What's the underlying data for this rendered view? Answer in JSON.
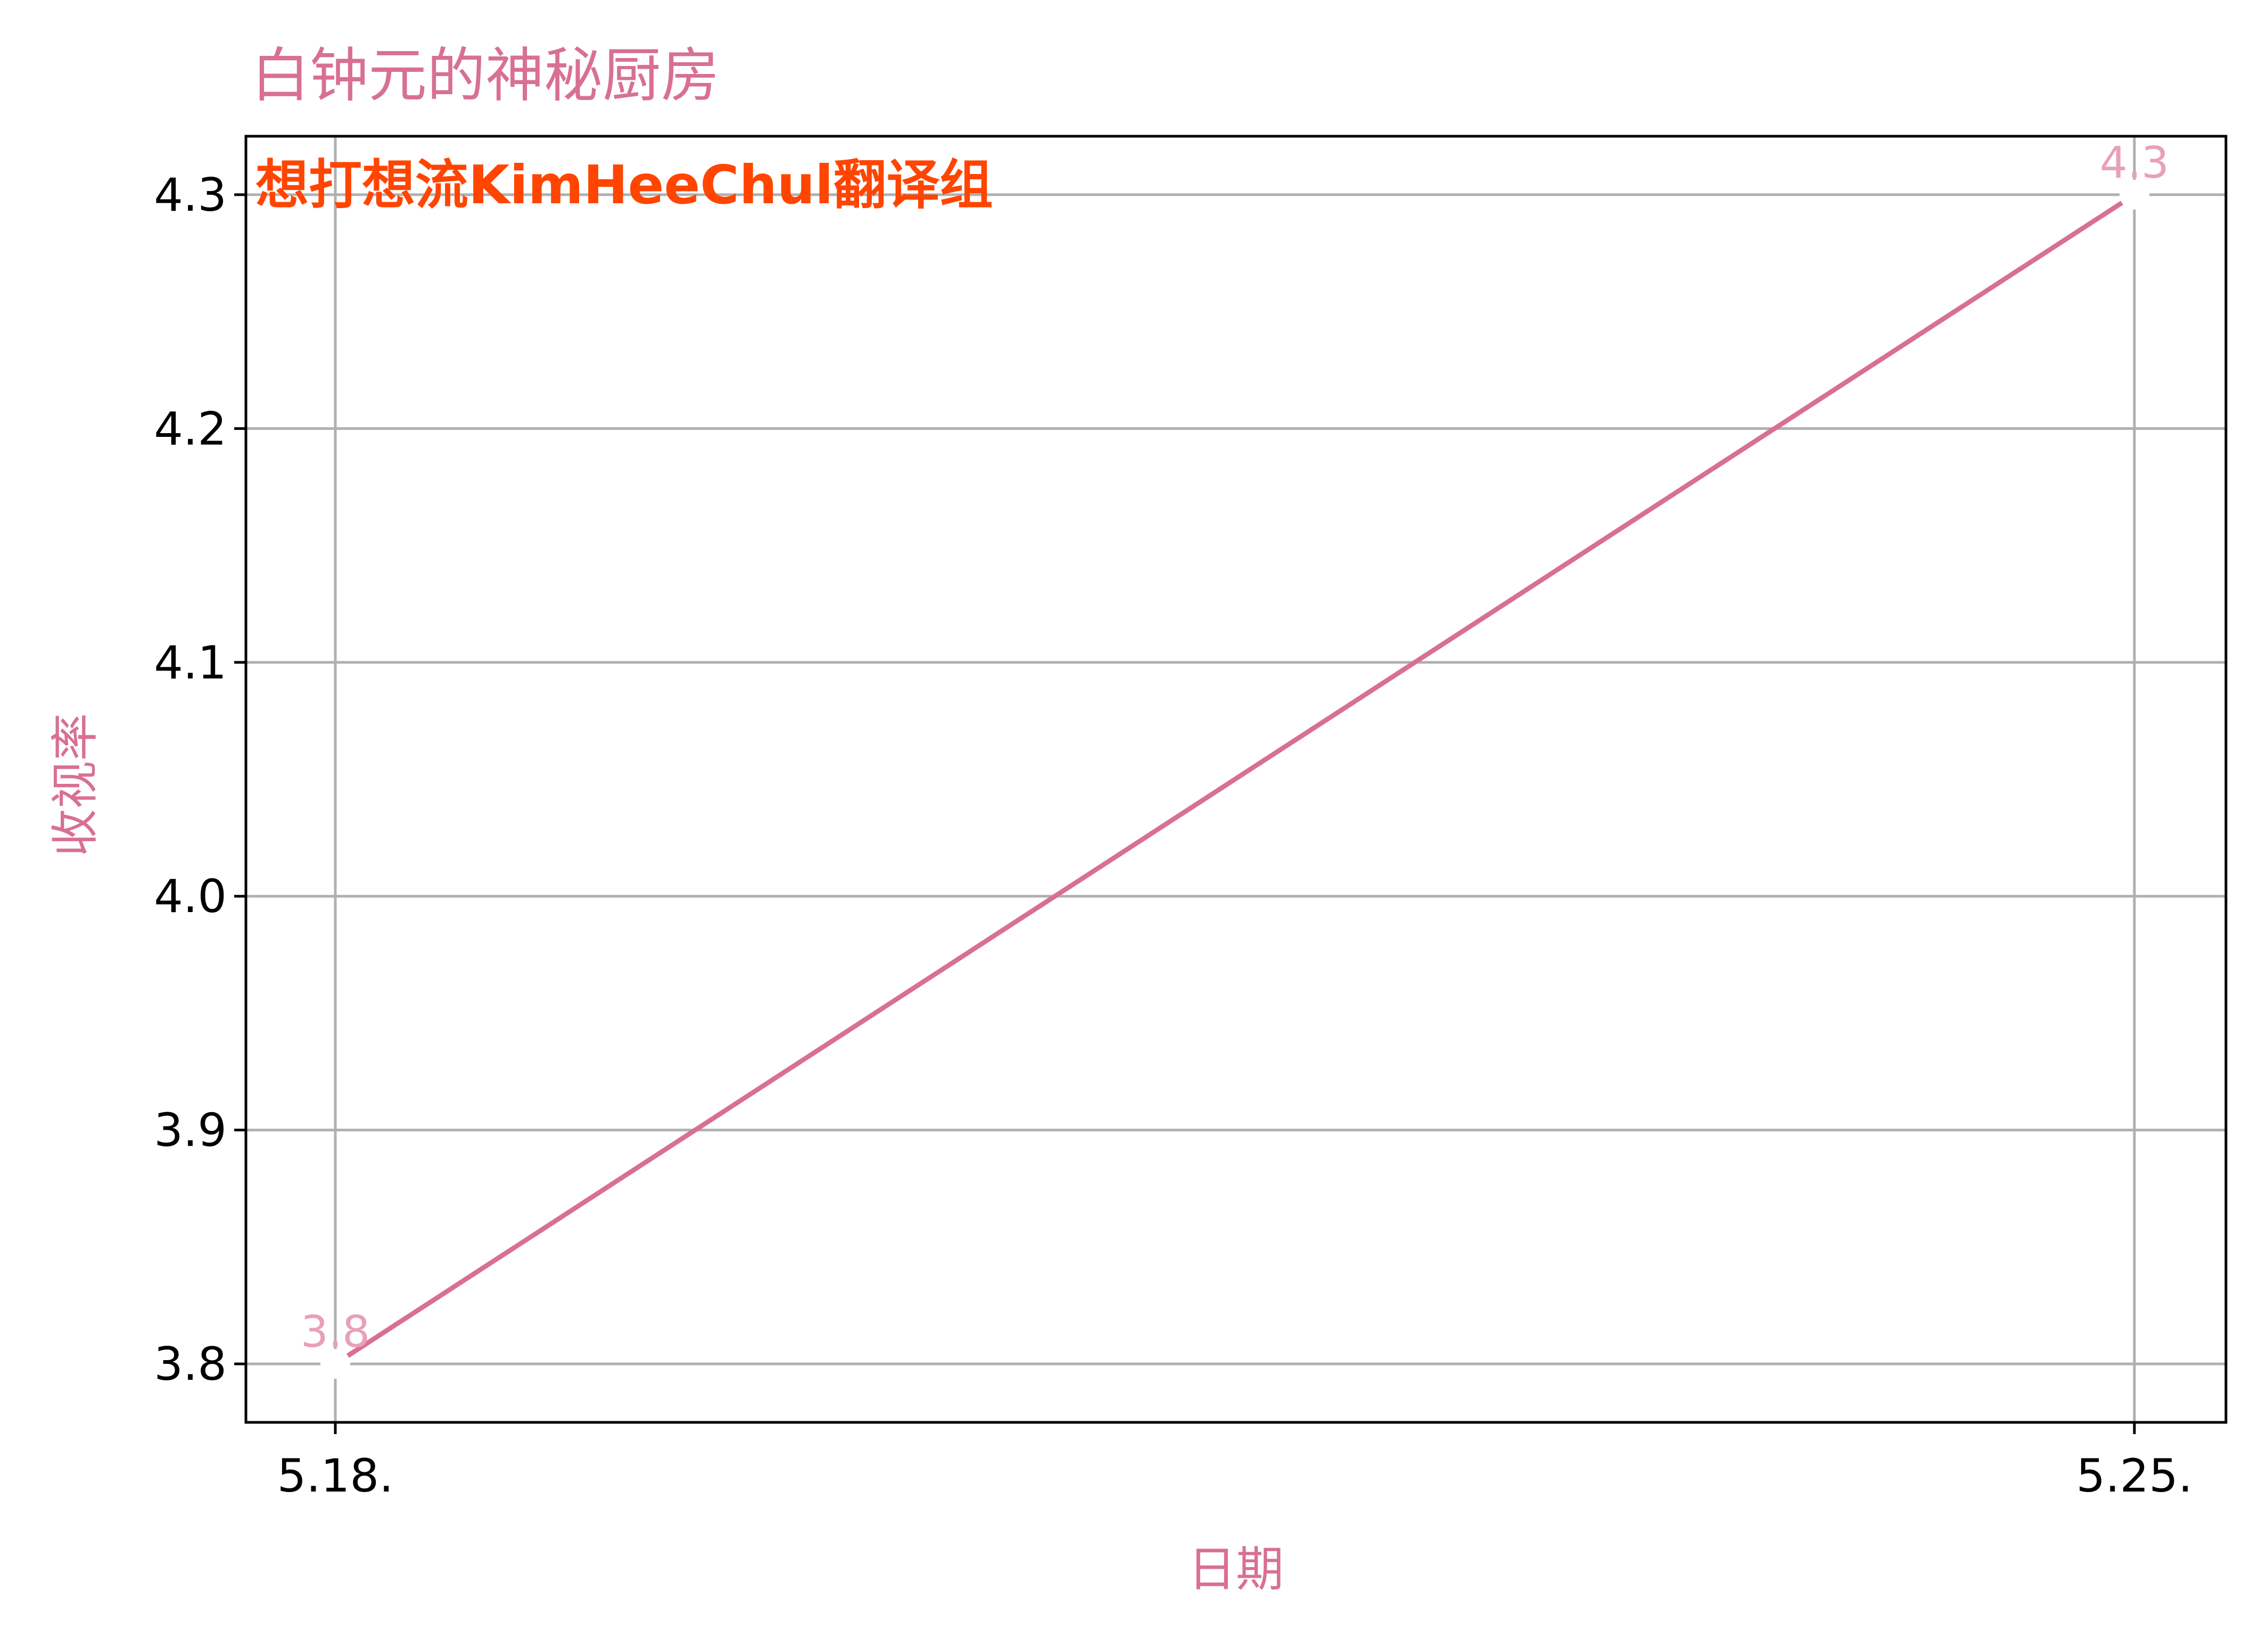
{
  "chart_data": {
    "type": "line",
    "title": "白钟元的神秘厨房",
    "xlabel": "日期",
    "ylabel": "收视率",
    "annotation": "想打想流KimHeeChul翻译组",
    "categories": [
      "5.18.",
      "5.25."
    ],
    "series": [
      {
        "values": [
          3.8,
          4.3
        ]
      }
    ],
    "data_labels": [
      "3.8",
      "4.3"
    ],
    "yticks": [
      "3.8",
      "3.9",
      "4.0",
      "4.1",
      "4.2",
      "4.3"
    ],
    "ytick_values": [
      3.8,
      3.9,
      4.0,
      4.1,
      4.2,
      4.3
    ],
    "ylim": [
      3.775,
      4.325
    ],
    "grid": true,
    "legend": "none",
    "colors": {
      "line": "#d87093",
      "title": "#d87093",
      "axis_label": "#d87093",
      "data_label": "#e8a0b8",
      "annotation": "#ff4500",
      "grid": "#b0b0b0",
      "marker": "#ffffff"
    }
  }
}
